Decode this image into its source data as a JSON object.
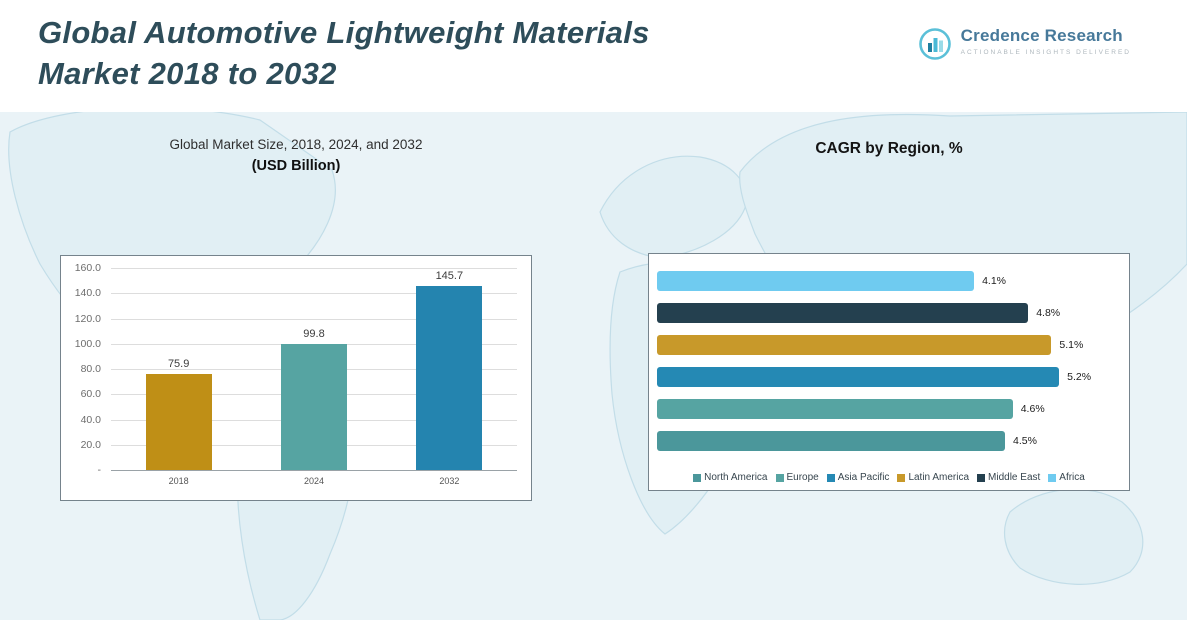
{
  "page": {
    "title_line1": "Global Automotive Lightweight Materials",
    "title_line2": "Market 2018 to 2032"
  },
  "logo": {
    "name": "Credence Research",
    "tagline": "ACTIONABLE INSIGHTS DELIVERED"
  },
  "colors": {
    "background_band": "#eaf3f7",
    "map_fill": "#e1eff4",
    "map_stroke": "#c2dde8",
    "title_text": "#2e4d5a"
  },
  "chart_data": [
    {
      "type": "bar",
      "title": "Global Market Size, 2018, 2024, and 2032",
      "subtitle": "(USD Billion)",
      "categories": [
        "2018",
        "2024",
        "2032"
      ],
      "values": [
        75.9,
        99.8,
        145.7
      ],
      "value_labels": [
        "75.9",
        "99.8",
        "145.7"
      ],
      "bar_colors": [
        "#bf8f16",
        "#56a4a2",
        "#2484af"
      ],
      "ylim": [
        0,
        160
      ],
      "ytick_labels": [
        "160.0",
        "140.0",
        "120.0",
        "100.0",
        "80.0",
        "60.0",
        "40.0",
        "20.0",
        "-"
      ],
      "grid": true,
      "legend_position": "none"
    },
    {
      "type": "bar-horizontal",
      "title": "CAGR by Region, %",
      "xlim": [
        0,
        6
      ],
      "grid": false,
      "series": [
        {
          "name": "Africa",
          "value": 4.1,
          "label": "4.1%",
          "color": "#6fcbf0"
        },
        {
          "name": "Middle East",
          "value": 4.8,
          "label": "4.8%",
          "color": "#24404f"
        },
        {
          "name": "Latin America",
          "value": 5.1,
          "label": "5.1%",
          "color": "#c8992a"
        },
        {
          "name": "Asia Pacific",
          "value": 5.2,
          "label": "5.2%",
          "color": "#2589b4"
        },
        {
          "name": "Europe",
          "value": 4.6,
          "label": "4.6%",
          "color": "#56a4a2"
        },
        {
          "name": "North America",
          "value": 4.5,
          "label": "4.5%",
          "color": "#4b979b"
        }
      ],
      "legend_position": "bottom",
      "legend": [
        {
          "label": "North America",
          "color": "#4b979b"
        },
        {
          "label": "Europe",
          "color": "#56a4a2"
        },
        {
          "label": "Asia Pacific",
          "color": "#2589b4"
        },
        {
          "label": "Latin America",
          "color": "#c8992a"
        },
        {
          "label": "Middle East",
          "color": "#24404f"
        },
        {
          "label": "Africa",
          "color": "#6fcbf0"
        }
      ]
    }
  ]
}
